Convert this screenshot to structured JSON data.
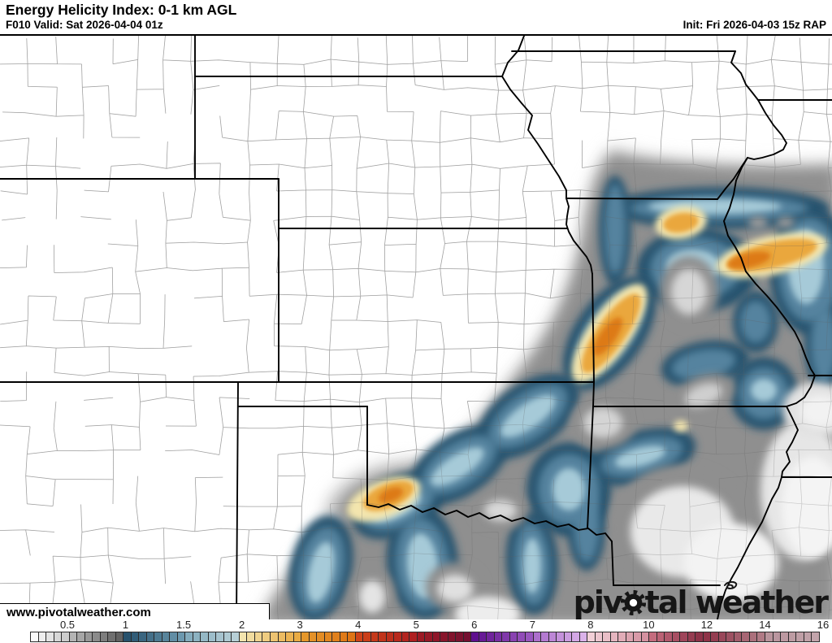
{
  "header": {
    "title": "Energy Helicity Index: 0-1 km AGL",
    "valid": "F010 Valid: Sat 2026-04-04 01z",
    "init": "Init: Fri 2026-04-03 15z RAP"
  },
  "watermark": {
    "text": "www.pivotalweather.com"
  },
  "logo": {
    "p1": "piv",
    "p2": "tal w",
    "e": "e",
    "p3": "ather"
  },
  "colorbar": {
    "ticks": [
      "0.5",
      "1",
      "1.5",
      "2",
      "3",
      "4",
      "5",
      "6",
      "7",
      "8",
      "10",
      "12",
      "14",
      "16"
    ],
    "intervals": [
      [
        "#ffffff",
        "#c8c8c8"
      ],
      [
        "#bdbdbd",
        "#565656"
      ],
      [
        "#26506c",
        "#6f9cb1"
      ],
      [
        "#7ea8ba",
        "#bed4da"
      ],
      [
        "#f3e5b0",
        "#e9a83e"
      ],
      [
        "#e69b2e",
        "#dd6f10"
      ],
      [
        "#cf4418",
        "#ad1d20"
      ],
      [
        "#a01a23",
        "#6f0f33"
      ],
      [
        "#5e0f8e",
        "#9d5ac2"
      ],
      [
        "#a869c9",
        "#e2bcef"
      ],
      [
        "#f2d0d8",
        "#d28d9c"
      ],
      [
        "#c97183",
        "#842940"
      ],
      [
        "#8f3248",
        "#b27f89"
      ],
      [
        "#b8929b",
        "#c3a7ad"
      ]
    ]
  },
  "map": {
    "palette": {
      "gray_outer": "#d3d3d3",
      "gray_mid": "#a9a9a9",
      "gray_dark": "#8f8f8f",
      "navy": "#27526e",
      "blue": "#54839f",
      "light_blue": "#a6cad8",
      "pale_yellow": "#f3e5ae",
      "orange": "#eaa73d",
      "dark_orange": "#dd7a12",
      "hole_gray": "#8f8f8f",
      "hole_light": "#d6d6d6",
      "county": "#bdbdbd",
      "state_border": "#000000"
    }
  }
}
